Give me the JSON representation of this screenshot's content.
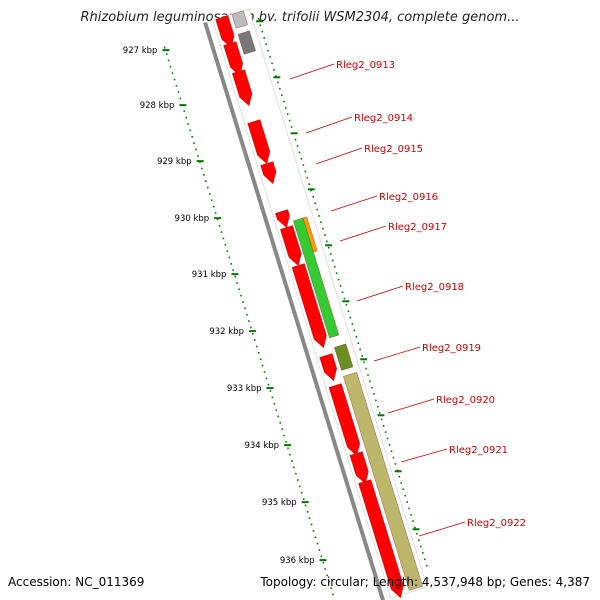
{
  "title": "Rhizobium leguminosarum bv. trifolii WSM2304, complete genom...",
  "footer": {
    "accession": "Accession: NC_011369",
    "topology": "Topology: circular; Length: 4,537,948 bp; Genes: 4,387"
  },
  "kbp_ticks": [
    "927 kbp",
    "928 kbp",
    "929 kbp",
    "930 kbp",
    "931 kbp",
    "932 kbp",
    "933 kbp",
    "934 kbp",
    "935 kbp",
    "936 kbp"
  ],
  "gene_labels": [
    "Rleg2_0913",
    "Rleg2_0914",
    "Rleg2_0915",
    "Rleg2_0916",
    "Rleg2_0917",
    "Rleg2_0918",
    "Rleg2_0919",
    "Rleg2_0920",
    "Rleg2_0921",
    "Rleg2_0922"
  ],
  "colors": {
    "gene_red": "#ff0000",
    "gene_gray": "#777777",
    "feature_green": "#33cc33",
    "feature_orange": "#ff9900",
    "feature_olive": "#6b8e23",
    "feature_khaki": "#bdb76b",
    "tick_green": "#007700",
    "label_red": "#cc0000",
    "backbone": "#888888"
  }
}
